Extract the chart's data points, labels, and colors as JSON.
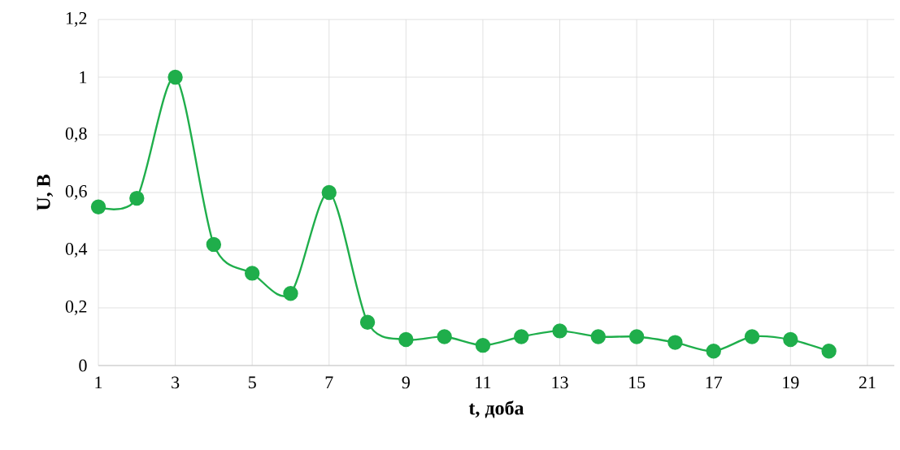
{
  "chart_data": {
    "type": "line",
    "xlabel": "t,  доба",
    "ylabel": "U, В",
    "x": [
      1,
      2,
      3,
      4,
      5,
      6,
      7,
      8,
      9,
      10,
      11,
      12,
      13,
      14,
      15,
      16,
      17,
      18,
      19,
      20
    ],
    "series": [
      {
        "color": "#1fae4b",
        "values": [
          0.55,
          0.58,
          1.0,
          0.42,
          0.32,
          0.25,
          0.6,
          0.15,
          0.09,
          0.1,
          0.07,
          0.1,
          0.12,
          0.1,
          0.1,
          0.08,
          0.05,
          0.1,
          0.09,
          0.05
        ]
      }
    ],
    "xlim": [
      1,
      21.7
    ],
    "xticks": [
      1,
      3,
      5,
      7,
      9,
      11,
      13,
      15,
      17,
      19,
      21
    ],
    "ylim": [
      0,
      1.2
    ],
    "yticks": [
      0,
      {
        "value": 0.2,
        "label": "0,2"
      },
      {
        "value": 0.4,
        "label": "0,4"
      },
      {
        "value": 0.6,
        "label": "0,6"
      },
      {
        "value": 0.8,
        "label": "0,8"
      },
      1,
      {
        "value": 1.2,
        "label": "1,2"
      }
    ],
    "grid": true,
    "marker": "circle",
    "line_style": "solid"
  }
}
